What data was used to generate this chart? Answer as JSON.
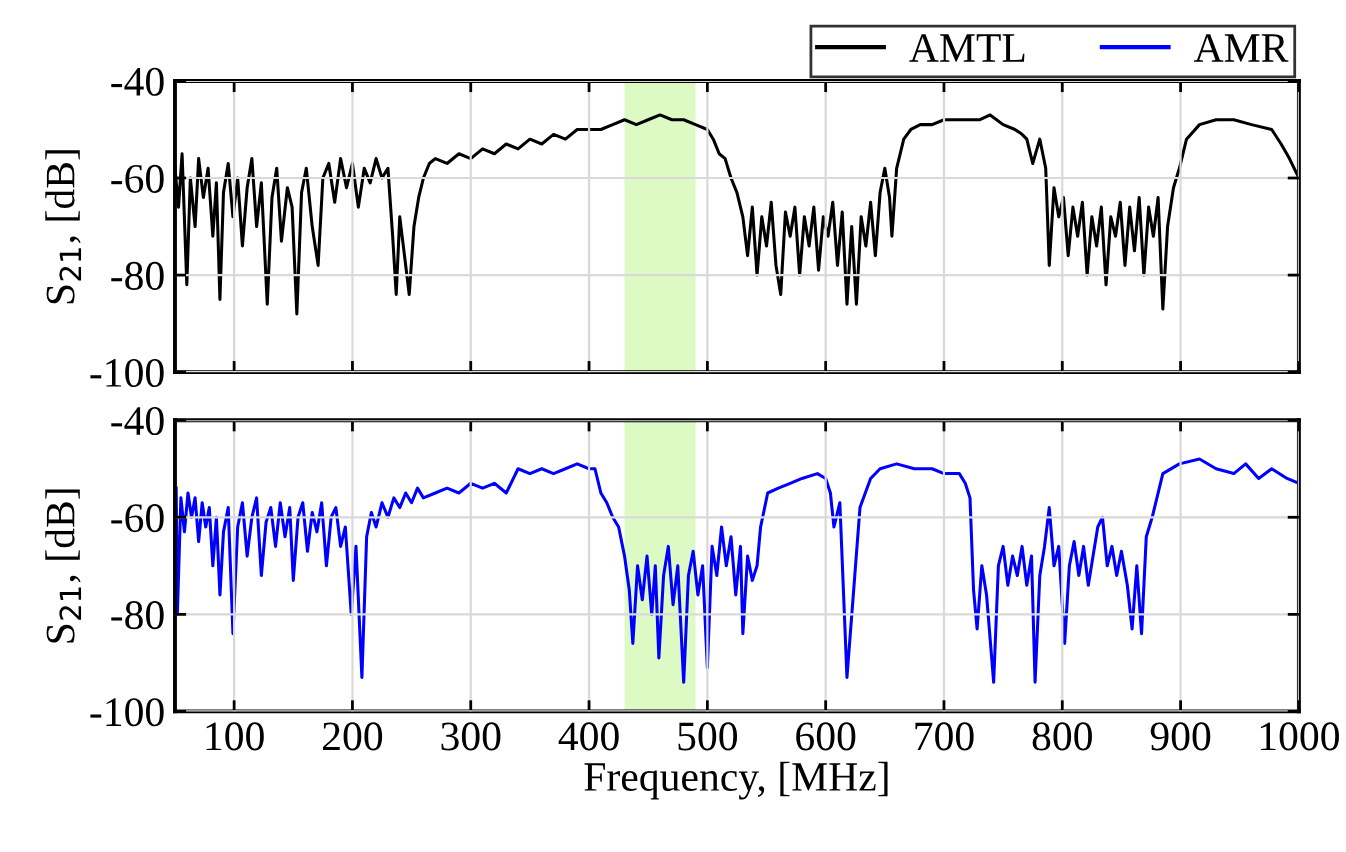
{
  "chart_data": [
    {
      "type": "line",
      "ylabel": "S$_{21}$, [dB]",
      "xlim": [
        50,
        1000
      ],
      "xticks": [
        100,
        200,
        300,
        400,
        500,
        600,
        700,
        800,
        900,
        1000
      ],
      "ylim": [
        -100,
        -40
      ],
      "yticks": [
        -100,
        -80,
        -60,
        -40
      ],
      "grid": true,
      "legend": "top right",
      "tick_labels": "y",
      "bands": [
        {
          "axis": "x",
          "from": 430,
          "to": 490,
          "color": "#ddf9c4"
        }
      ],
      "series": [
        {
          "name": "AMTL",
          "color": "#000000",
          "x": [
            50,
            53,
            56,
            60,
            63,
            67,
            70,
            74,
            78,
            82,
            85,
            88,
            91,
            95,
            99,
            103,
            107,
            111,
            115,
            119,
            123,
            128,
            132,
            136,
            140,
            145,
            149,
            153,
            157,
            161,
            166,
            171,
            175,
            180,
            185,
            190,
            195,
            200,
            205,
            210,
            215,
            220,
            225,
            230,
            234,
            237,
            240,
            244,
            248,
            252,
            256,
            260,
            265,
            270,
            280,
            290,
            300,
            310,
            320,
            330,
            340,
            350,
            360,
            370,
            380,
            390,
            400,
            410,
            420,
            430,
            440,
            450,
            460,
            470,
            480,
            490,
            500,
            505,
            510,
            515,
            520,
            525,
            530,
            534,
            538,
            542,
            546,
            550,
            554,
            558,
            562,
            566,
            570,
            574,
            578,
            582,
            586,
            590,
            594,
            598,
            602,
            606,
            610,
            614,
            618,
            622,
            626,
            630,
            634,
            638,
            642,
            646,
            650,
            654,
            656,
            660,
            666,
            672,
            680,
            690,
            700,
            710,
            720,
            730,
            739,
            750,
            760,
            766,
            770,
            775,
            781,
            786,
            789,
            793,
            797,
            801,
            805,
            809,
            813,
            817,
            821,
            825,
            829,
            833,
            837,
            841,
            845,
            849,
            853,
            857,
            861,
            865,
            869,
            873,
            877,
            881,
            885,
            889,
            894,
            899,
            905,
            916,
            930,
            945,
            960,
            977,
            985,
            992,
            1000
          ],
          "values": [
            -58,
            -66,
            -55,
            -82,
            -60,
            -70,
            -56,
            -64,
            -58,
            -72,
            -61,
            -85,
            -63,
            -57,
            -68,
            -60,
            -74,
            -62,
            -56,
            -70,
            -61,
            -86,
            -64,
            -58,
            -73,
            -62,
            -66,
            -88,
            -63,
            -58,
            -70,
            -78,
            -60,
            -57,
            -65,
            -56,
            -62,
            -57,
            -66,
            -58,
            -61,
            -56,
            -60,
            -58,
            -72,
            -84,
            -68,
            -76,
            -84,
            -70,
            -64,
            -60,
            -57,
            -56,
            -57,
            -55,
            -56,
            -54,
            -55,
            -53,
            -54,
            -52,
            -53,
            -51,
            -52,
            -50,
            -50,
            -50,
            -49,
            -48,
            -49,
            -48,
            -47,
            -48,
            -48,
            -49,
            -50,
            -52,
            -55,
            -56,
            -60,
            -63,
            -68,
            -76,
            -66,
            -80,
            -68,
            -74,
            -65,
            -78,
            -84,
            -67,
            -72,
            -66,
            -80,
            -68,
            -74,
            -66,
            -79,
            -68,
            -72,
            -65,
            -78,
            -67,
            -86,
            -70,
            -86,
            -68,
            -74,
            -65,
            -76,
            -63,
            -58,
            -64,
            -72,
            -58,
            -52,
            -50,
            -49,
            -49,
            -48,
            -48,
            -48,
            -48,
            -47,
            -49,
            -50,
            -51,
            -52,
            -57,
            -52,
            -58,
            -78,
            -62,
            -68,
            -64,
            -76,
            -66,
            -72,
            -65,
            -80,
            -68,
            -74,
            -66,
            -82,
            -68,
            -72,
            -65,
            -78,
            -66,
            -75,
            -64,
            -80,
            -66,
            -72,
            -64,
            -87,
            -70,
            -62,
            -58,
            -52,
            -49,
            -48,
            -48,
            -49,
            -50,
            -53,
            -56,
            -60
          ]
        }
      ]
    },
    {
      "type": "line",
      "xlabel": "Frequency, [MHz]",
      "ylabel": "S$_{21}$, [dB]",
      "xlim": [
        50,
        1000
      ],
      "xticks": [
        100,
        200,
        300,
        400,
        500,
        600,
        700,
        800,
        900,
        1000
      ],
      "ylim": [
        -100,
        -40
      ],
      "yticks": [
        -100,
        -80,
        -60,
        -40
      ],
      "grid": true,
      "legend": "top right",
      "bands": [
        {
          "axis": "x",
          "from": 430,
          "to": 490,
          "color": "#ddf9c4"
        }
      ],
      "series": [
        {
          "name": "AMR",
          "color": "#0000ff",
          "x": [
            51,
            52,
            55,
            58,
            61,
            64,
            67,
            70,
            73,
            76,
            79,
            82,
            85,
            88,
            91,
            95,
            99,
            103,
            107,
            111,
            115,
            119,
            123,
            127,
            131,
            135,
            139,
            143,
            147,
            150,
            154,
            158,
            162,
            166,
            170,
            174,
            178,
            182,
            186,
            190,
            194,
            199,
            203,
            208,
            212,
            216,
            220,
            225,
            230,
            235,
            240,
            245,
            250,
            255,
            260,
            270,
            280,
            290,
            300,
            310,
            320,
            330,
            340,
            350,
            360,
            370,
            380,
            390,
            400,
            405,
            410,
            415,
            420,
            425,
            430,
            434,
            437,
            441,
            445,
            449,
            453,
            456,
            459,
            463,
            467,
            471,
            475,
            480,
            484,
            488,
            492,
            496,
            500,
            504,
            508,
            512,
            516,
            520,
            524,
            528,
            530,
            534,
            538,
            542,
            545,
            551,
            560,
            570,
            580,
            593,
            600,
            604,
            607,
            612,
            618,
            624,
            629,
            638,
            646,
            660,
            675,
            690,
            700,
            713,
            718,
            722,
            725,
            728,
            732,
            736,
            742,
            746,
            750,
            754,
            758,
            762,
            766,
            770,
            774,
            777,
            781,
            785,
            789,
            793,
            797,
            802,
            806,
            810,
            814,
            818,
            822,
            826,
            830,
            834,
            838,
            842,
            846,
            850,
            855,
            859,
            863,
            867,
            871,
            876,
            880,
            885,
            899,
            916,
            930,
            945,
            955,
            966,
            977,
            990,
            1000
          ],
          "values": [
            -54,
            -80,
            -56,
            -63,
            -55,
            -60,
            -56,
            -65,
            -57,
            -62,
            -58,
            -70,
            -60,
            -76,
            -63,
            -58,
            -84,
            -62,
            -57,
            -68,
            -60,
            -56,
            -72,
            -61,
            -58,
            -66,
            -57,
            -64,
            -58,
            -73,
            -60,
            -57,
            -67,
            -59,
            -63,
            -57,
            -70,
            -60,
            -58,
            -66,
            -62,
            -80,
            -66,
            -93,
            -64,
            -59,
            -62,
            -57,
            -60,
            -56,
            -58,
            -55,
            -57,
            -54,
            -56,
            -55,
            -54,
            -55,
            -53,
            -54,
            -53,
            -55,
            -50,
            -51,
            -50,
            -51,
            -50,
            -49,
            -50,
            -50,
            -55,
            -57,
            -60,
            -62,
            -68,
            -75,
            -86,
            -70,
            -77,
            -68,
            -80,
            -70,
            -89,
            -72,
            -66,
            -78,
            -70,
            -94,
            -72,
            -67,
            -76,
            -70,
            -91,
            -66,
            -72,
            -62,
            -70,
            -64,
            -76,
            -66,
            -84,
            -68,
            -73,
            -70,
            -62,
            -55,
            -54,
            -53,
            -52,
            -51,
            -52,
            -55,
            -62,
            -57,
            -93,
            -74,
            -58,
            -52,
            -50,
            -49,
            -50,
            -50,
            -51,
            -51,
            -53,
            -56,
            -75,
            -83,
            -70,
            -76,
            -94,
            -70,
            -66,
            -74,
            -68,
            -72,
            -66,
            -74,
            -68,
            -94,
            -72,
            -66,
            -58,
            -70,
            -66,
            -86,
            -70,
            -65,
            -72,
            -66,
            -74,
            -68,
            -62,
            -60,
            -70,
            -66,
            -72,
            -67,
            -74,
            -83,
            -70,
            -84,
            -64,
            -60,
            -56,
            -51,
            -49,
            -48,
            -50,
            -51,
            -49,
            -52,
            -50,
            -52,
            -53
          ]
        }
      ]
    }
  ]
}
